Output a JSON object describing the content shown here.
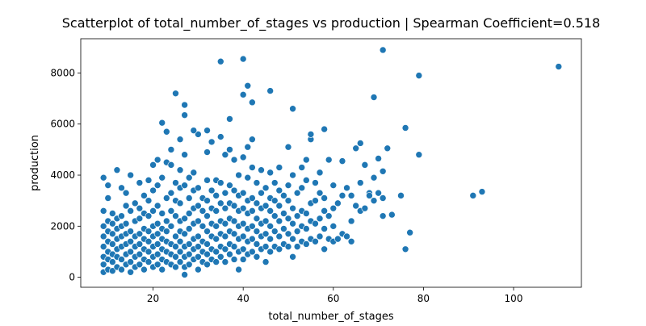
{
  "chart_data": {
    "type": "scatter",
    "title": "Scatterplot of total_number_of_stages vs production | Spearman Coefficient=0.518",
    "x_label": "total_number_of_stages",
    "y_label": "production",
    "color": "#1f77b4",
    "xlim": [
      3.95,
      115.05
    ],
    "ylim": [
      -392,
      9342
    ],
    "xticks": [
      20,
      40,
      60,
      80,
      100
    ],
    "yticks": [
      0,
      2000,
      4000,
      6000,
      8000
    ],
    "x": [
      9,
      9,
      9,
      9,
      9,
      9,
      9,
      9,
      10,
      10,
      10,
      10,
      10,
      10,
      10,
      10,
      11,
      11,
      11,
      11,
      11,
      11,
      11,
      12,
      12,
      12,
      12,
      12,
      12,
      12,
      13,
      13,
      13,
      13,
      13,
      13,
      13,
      14,
      14,
      14,
      14,
      14,
      14,
      14,
      15,
      15,
      15,
      15,
      15,
      15,
      15,
      16,
      16,
      16,
      16,
      16,
      16,
      17,
      17,
      17,
      17,
      17,
      17,
      17,
      18,
      18,
      18,
      18,
      18,
      18,
      18,
      19,
      19,
      19,
      19,
      19,
      19,
      19,
      20,
      20,
      20,
      20,
      20,
      20,
      20,
      20,
      21,
      21,
      21,
      21,
      21,
      21,
      21,
      21,
      22,
      22,
      22,
      22,
      22,
      22,
      22,
      23,
      23,
      23,
      23,
      23,
      23,
      23,
      24,
      24,
      24,
      24,
      24,
      24,
      24,
      24,
      25,
      25,
      25,
      25,
      25,
      25,
      25,
      26,
      26,
      26,
      26,
      26,
      26,
      26,
      26,
      26,
      27,
      27,
      27,
      27,
      27,
      27,
      27,
      27,
      28,
      28,
      28,
      28,
      28,
      28,
      28,
      29,
      29,
      29,
      29,
      29,
      29,
      29,
      30,
      30,
      30,
      30,
      30,
      30,
      30,
      30,
      31,
      31,
      31,
      31,
      31,
      31,
      32,
      32,
      32,
      32,
      32,
      32,
      32,
      32,
      33,
      33,
      33,
      33,
      33,
      33,
      33,
      34,
      34,
      34,
      34,
      34,
      34,
      34,
      35,
      35,
      35,
      35,
      35,
      35,
      35,
      36,
      36,
      36,
      36,
      36,
      36,
      36,
      37,
      37,
      37,
      37,
      37,
      37,
      37,
      38,
      38,
      38,
      38,
      38,
      38,
      38,
      39,
      39,
      39,
      39,
      39,
      39,
      39,
      40,
      40,
      40,
      40,
      40,
      40,
      40,
      41,
      41,
      41,
      41,
      41,
      41,
      41,
      42,
      42,
      42,
      42,
      42,
      42,
      42,
      43,
      43,
      43,
      43,
      43,
      43,
      44,
      44,
      44,
      44,
      44,
      44,
      45,
      45,
      45,
      45,
      45,
      45,
      46,
      46,
      46,
      46,
      46,
      46,
      47,
      47,
      47,
      47,
      47,
      48,
      48,
      48,
      48,
      48,
      48,
      49,
      49,
      49,
      49,
      50,
      50,
      50,
      50,
      50,
      50,
      51,
      51,
      51,
      51,
      51,
      52,
      52,
      52,
      52,
      53,
      53,
      53,
      53,
      53,
      54,
      54,
      54,
      54,
      54,
      55,
      55,
      55,
      55,
      56,
      56,
      56,
      56,
      57,
      57,
      57,
      57,
      58,
      58,
      58,
      58,
      59,
      59,
      59,
      60,
      60,
      60,
      60,
      61,
      61,
      62,
      62,
      63,
      63,
      64,
      64,
      64,
      65,
      66,
      66,
      67,
      67,
      68,
      69,
      69,
      71,
      71,
      35,
      40,
      71,
      110,
      79,
      41,
      46,
      69,
      25,
      27,
      40,
      42,
      22,
      27,
      51,
      37,
      23,
      29,
      32,
      55,
      58,
      76,
      66,
      79,
      91,
      93,
      77,
      76,
      73,
      75,
      62,
      65,
      72,
      70,
      71,
      70,
      68
    ],
    "values": [
      200,
      500,
      800,
      1200,
      1600,
      2000,
      2600,
      3900,
      300,
      700,
      1000,
      1400,
      1800,
      2200,
      3100,
      3600,
      250,
      600,
      900,
      1300,
      1700,
      2100,
      2500,
      400,
      800,
      1100,
      1500,
      1900,
      2300,
      4200,
      300,
      700,
      1200,
      1600,
      2000,
      2400,
      3500,
      500,
      900,
      1300,
      1700,
      2100,
      2800,
      3300,
      200,
      600,
      1000,
      1400,
      1800,
      2600,
      4000,
      400,
      800,
      1200,
      1600,
      2200,
      2900,
      500,
      900,
      1300,
      1700,
      2300,
      2700,
      3700,
      300,
      700,
      1100,
      1500,
      1900,
      2500,
      3200,
      600,
      1000,
      1400,
      1800,
      2400,
      3000,
      3800,
      400,
      800,
      1200,
      1600,
      2000,
      2600,
      3400,
      4400,
      500,
      900,
      1300,
      1700,
      2100,
      2800,
      3600,
      4600,
      300,
      700,
      1100,
      1500,
      1900,
      2500,
      3900,
      600,
      1000,
      1400,
      1800,
      2200,
      3100,
      4500,
      500,
      900,
      1300,
      2000,
      2600,
      3300,
      4400,
      5000,
      400,
      800,
      1200,
      1600,
      2400,
      3000,
      3700,
      600,
      1000,
      1400,
      1800,
      2200,
      2900,
      3500,
      4200,
      5400,
      100,
      400,
      800,
      1200,
      1700,
      2300,
      3600,
      4800,
      500,
      900,
      1300,
      1900,
      2500,
      3100,
      3900,
      700,
      1100,
      1500,
      2100,
      2700,
      3400,
      4100,
      300,
      800,
      1200,
      1600,
      2200,
      2800,
      3500,
      5600,
      600,
      1000,
      1400,
      2000,
      2600,
      3100,
      500,
      900,
      1300,
      1800,
      2400,
      3000,
      3800,
      4900,
      700,
      1100,
      1600,
      2100,
      2700,
      3400,
      5300,
      600,
      1000,
      1500,
      2000,
      2600,
      3200,
      3800,
      800,
      1200,
      1700,
      2200,
      2900,
      3700,
      5500,
      600,
      1100,
      1600,
      2100,
      2700,
      3300,
      4800,
      900,
      1300,
      1800,
      2300,
      2900,
      3600,
      5000,
      700,
      1200,
      1700,
      2200,
      2800,
      3400,
      4600,
      300,
      1000,
      1500,
      2000,
      2600,
      3200,
      4000,
      700,
      1100,
      1600,
      2100,
      2700,
      3300,
      4700,
      900,
      1400,
      1900,
      2500,
      3000,
      3900,
      5100,
      1000,
      1500,
      2000,
      2600,
      3100,
      4300,
      5400,
      800,
      1300,
      1800,
      2300,
      2900,
      3700,
      1100,
      1600,
      2100,
      2700,
      3300,
      4200,
      600,
      1200,
      1700,
      2200,
      2800,
      3500,
      1000,
      1500,
      2000,
      2600,
      3100,
      4100,
      1200,
      1800,
      2400,
      3000,
      3700,
      1100,
      1600,
      2200,
      2800,
      3400,
      4300,
      1300,
      1900,
      2500,
      3200,
      1200,
      1700,
      2300,
      3000,
      3600,
      5100,
      800,
      1500,
      2100,
      2700,
      4000,
      1200,
      1800,
      2400,
      3300,
      1400,
      2000,
      2600,
      3500,
      4300,
      1300,
      1900,
      2500,
      3800,
      4600,
      1500,
      2200,
      2900,
      5400,
      1400,
      2100,
      3000,
      3700,
      1600,
      2300,
      3300,
      4100,
      1100,
      1900,
      2600,
      3100,
      1500,
      2400,
      4600,
      1400,
      2000,
      2700,
      3600,
      1500,
      2900,
      1700,
      3200,
      1600,
      3500,
      1400,
      2200,
      3200,
      2800,
      2600,
      3700,
      2700,
      4400,
      3300,
      3000,
      3900,
      2400,
      3100,
      8450,
      8550,
      8900,
      8250,
      7900,
      7500,
      7300,
      7050,
      7200,
      6750,
      7150,
      6850,
      6050,
      6350,
      6600,
      6200,
      5700,
      5750,
      5750,
      5600,
      5800,
      5850,
      5250,
      4800,
      3200,
      3350,
      1750,
      1100,
      2450,
      3200,
      4550,
      5050,
      5050,
      4650,
      4150,
      3300,
      3200
    ]
  }
}
